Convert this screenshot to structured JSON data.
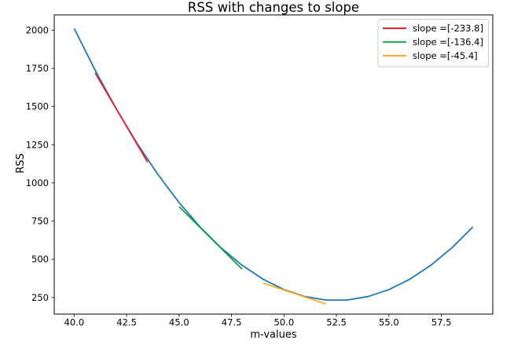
{
  "chart_data": {
    "type": "line",
    "title": "RSS with changes to slope",
    "xlabel": "m-values",
    "ylabel": "RSS",
    "xlim": [
      39.05,
      59.95
    ],
    "ylim": [
      141,
      2100
    ],
    "x_ticks": [
      "40.0",
      "42.5",
      "45.0",
      "47.5",
      "50.0",
      "52.5",
      "55.0",
      "57.5"
    ],
    "y_ticks": [
      "250",
      "500",
      "750",
      "1000",
      "1250",
      "1500",
      "1750",
      "2000"
    ],
    "grid": false,
    "legend": {
      "position": "upper right",
      "border_color": "#cccccc",
      "background": "#ffffff"
    },
    "axis_color": "#000000",
    "series": [
      {
        "name": "RSS curve",
        "color": "#1f77b4",
        "in_legend": false,
        "x": [
          40,
          41,
          42,
          43,
          44,
          45,
          46,
          47,
          48,
          49,
          50,
          51,
          52,
          53,
          54,
          55,
          56,
          57,
          58,
          59
        ],
        "y": [
          2011.3,
          1737.7,
          1486.9,
          1258.9,
          1053.7,
          871.3,
          711.7,
          574.9,
          460.9,
          369.7,
          301.3,
          255.7,
          232.9,
          232.9,
          255.7,
          301.3,
          369.7,
          460.9,
          574.9,
          711.7
        ]
      },
      {
        "name": "slope =[-233.8]",
        "slope": -233.8,
        "color": "#e0252e",
        "in_legend": true,
        "x": [
          41,
          43.5
        ],
        "y": [
          1720.0,
          1135.5
        ]
      },
      {
        "name": "slope =[-136.4]",
        "slope": -136.4,
        "color": "#149e4a",
        "in_legend": true,
        "x": [
          45,
          48
        ],
        "y": [
          845.0,
          435.8
        ]
      },
      {
        "name": "slope =[-45.4]",
        "slope": -45.4,
        "color": "#ffa827",
        "in_legend": true,
        "x": [
          49,
          52
        ],
        "y": [
          343.7,
          207.5
        ]
      }
    ]
  }
}
